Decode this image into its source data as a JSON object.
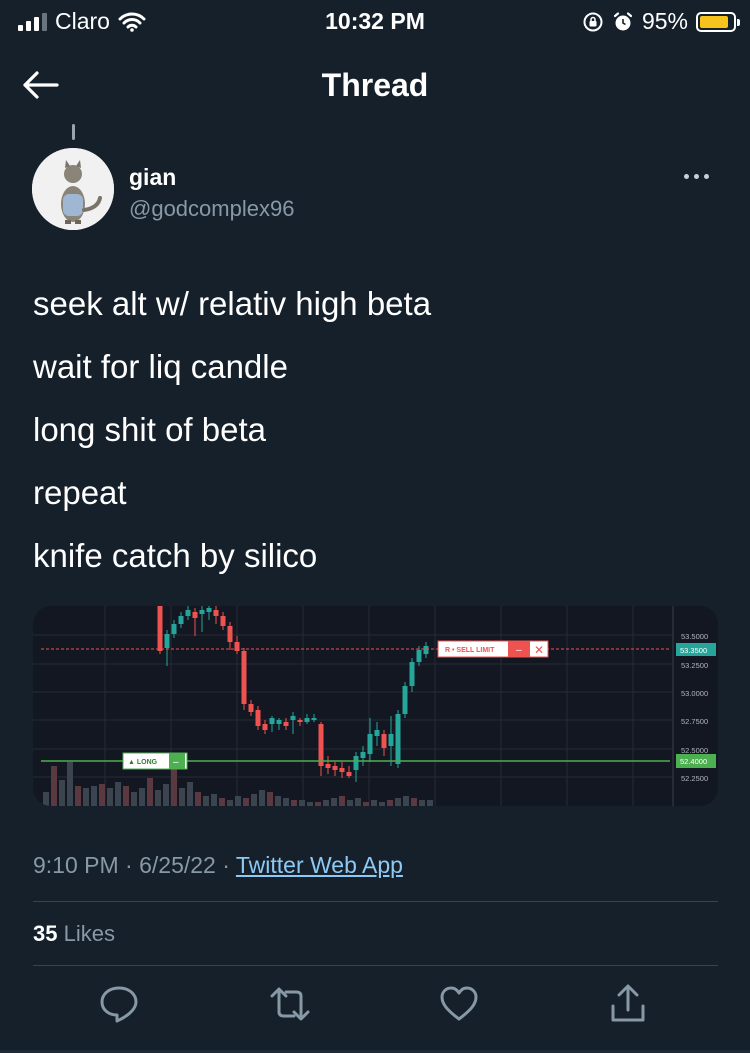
{
  "status_bar": {
    "carrier": "Claro",
    "time": "10:32 PM",
    "battery": "95%",
    "battery_color": "#f5c31b"
  },
  "nav": {
    "title": "Thread",
    "back_icon": "arrow-left-icon"
  },
  "tweet": {
    "author_name": "gian",
    "author_handle": "@godcomplex96",
    "lines": [
      "seek alt w/ relativ high beta",
      "wait for liq candle",
      "long shit of beta",
      "repeat",
      "knife catch by silico"
    ],
    "time": "9:10 PM",
    "date": "6/25/22",
    "source": "Twitter Web App",
    "likes_count": "35",
    "likes_label": "Likes"
  },
  "chart": {
    "price_labels": [
      "53.5000",
      "53.2500",
      "53.0000",
      "52.7500",
      "52.5000",
      "52.2500"
    ],
    "sell_limit_price": "53.3500",
    "long_price": "52.4000",
    "sell_limit_label": "R • SELL LIMIT",
    "long_label": "▲ LONG",
    "up_color": "#26a69a",
    "down_color": "#ef5350"
  },
  "actions": {
    "reply_icon": "reply-icon",
    "retweet_icon": "retweet-icon",
    "like_icon": "heart-icon",
    "share_icon": "share-icon"
  }
}
